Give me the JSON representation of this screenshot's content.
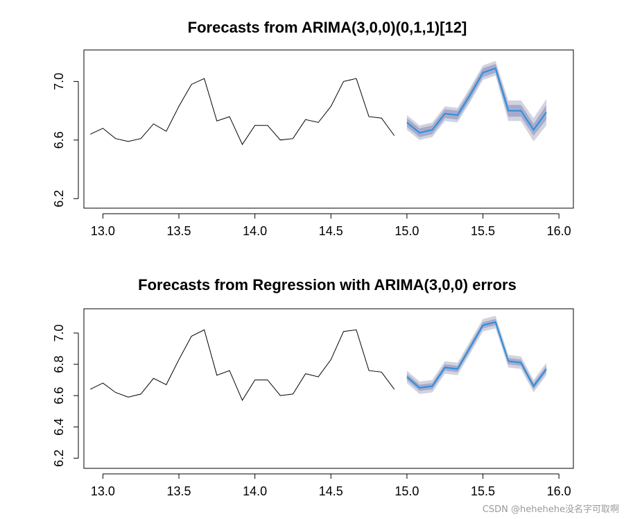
{
  "chart_data": [
    {
      "type": "line",
      "title": "Forecasts from ARIMA(3,0,0)(0,1,1)[12]",
      "xlabel": "",
      "ylabel": "",
      "xlim": [
        12.875,
        16.095
      ],
      "ylim": [
        6.135,
        7.215
      ],
      "x_ticks": [
        13.0,
        13.5,
        14.0,
        14.5,
        15.0,
        15.5,
        16.0
      ],
      "x_tick_labels": [
        "13.0",
        "13.5",
        "14.0",
        "14.5",
        "15.0",
        "15.5",
        "16.0"
      ],
      "y_ticks": [
        6.2,
        6.6,
        7.0
      ],
      "y_tick_labels": [
        "6.2",
        "6.6",
        "7.0"
      ],
      "grid": false,
      "history": {
        "x": [
          12.917,
          13.0,
          13.083,
          13.167,
          13.25,
          13.333,
          13.417,
          13.5,
          13.583,
          13.667,
          13.75,
          13.833,
          13.917,
          14.0,
          14.083,
          14.167,
          14.25,
          14.333,
          14.417,
          14.5,
          14.583,
          14.667,
          14.75,
          14.833,
          14.917
        ],
        "y": [
          6.64,
          6.68,
          6.61,
          6.59,
          6.61,
          6.71,
          6.66,
          6.83,
          6.98,
          7.02,
          6.73,
          6.76,
          6.57,
          6.7,
          6.7,
          6.6,
          6.61,
          6.74,
          6.72,
          6.83,
          7.0,
          7.02,
          6.76,
          6.75,
          6.63
        ]
      },
      "forecast": {
        "x": [
          15.0,
          15.083,
          15.167,
          15.25,
          15.333,
          15.417,
          15.5,
          15.583,
          15.667,
          15.75,
          15.833,
          15.917
        ],
        "mean": [
          6.72,
          6.65,
          6.67,
          6.78,
          6.77,
          6.91,
          7.06,
          7.09,
          6.8,
          6.8,
          6.67,
          6.79
        ],
        "lower80": [
          6.69,
          6.62,
          6.64,
          6.75,
          6.74,
          6.88,
          7.03,
          7.06,
          6.76,
          6.76,
          6.63,
          6.74
        ],
        "upper80": [
          6.75,
          6.68,
          6.7,
          6.81,
          6.8,
          6.94,
          7.09,
          7.12,
          6.84,
          6.84,
          6.71,
          6.84
        ],
        "lower95": [
          6.67,
          6.6,
          6.62,
          6.73,
          6.72,
          6.86,
          7.01,
          7.04,
          6.73,
          6.73,
          6.59,
          6.7
        ],
        "upper95": [
          6.77,
          6.7,
          6.72,
          6.83,
          6.82,
          6.96,
          7.11,
          7.14,
          6.87,
          6.87,
          6.75,
          6.88
        ]
      },
      "colors": {
        "history": "#000000",
        "forecast": "#2a8fdc",
        "band80": "#a6abcd",
        "band95": "#d2d3de"
      }
    },
    {
      "type": "line",
      "title": "Forecasts from Regression with ARIMA(3,0,0) errors",
      "xlabel": "",
      "ylabel": "",
      "xlim": [
        12.875,
        16.095
      ],
      "ylim": [
        6.135,
        7.155
      ],
      "x_ticks": [
        13.0,
        13.5,
        14.0,
        14.5,
        15.0,
        15.5,
        16.0
      ],
      "x_tick_labels": [
        "13.0",
        "13.5",
        "14.0",
        "14.5",
        "15.0",
        "15.5",
        "16.0"
      ],
      "y_ticks": [
        6.2,
        6.4,
        6.6,
        6.8,
        7.0
      ],
      "y_tick_labels": [
        "6.2",
        "6.4",
        "6.6",
        "6.8",
        "7.0"
      ],
      "grid": false,
      "history": {
        "x": [
          12.917,
          13.0,
          13.083,
          13.167,
          13.25,
          13.333,
          13.417,
          13.5,
          13.583,
          13.667,
          13.75,
          13.833,
          13.917,
          14.0,
          14.083,
          14.167,
          14.25,
          14.333,
          14.417,
          14.5,
          14.583,
          14.667,
          14.75,
          14.833,
          14.917
        ],
        "y": [
          6.64,
          6.68,
          6.62,
          6.59,
          6.61,
          6.71,
          6.67,
          6.83,
          6.98,
          7.02,
          6.73,
          6.76,
          6.57,
          6.7,
          6.7,
          6.6,
          6.61,
          6.74,
          6.72,
          6.83,
          7.01,
          7.02,
          6.76,
          6.75,
          6.64
        ]
      },
      "forecast": {
        "x": [
          15.0,
          15.083,
          15.167,
          15.25,
          15.333,
          15.417,
          15.5,
          15.583,
          15.667,
          15.75,
          15.833,
          15.917
        ],
        "mean": [
          6.72,
          6.65,
          6.66,
          6.78,
          6.77,
          6.91,
          7.05,
          7.07,
          6.82,
          6.81,
          6.66,
          6.77
        ],
        "lower80": [
          6.7,
          6.63,
          6.64,
          6.76,
          6.75,
          6.89,
          7.03,
          7.05,
          6.8,
          6.79,
          6.64,
          6.75
        ],
        "upper80": [
          6.74,
          6.67,
          6.68,
          6.8,
          6.79,
          6.93,
          7.07,
          7.09,
          6.84,
          6.83,
          6.68,
          6.79
        ],
        "lower95": [
          6.68,
          6.61,
          6.62,
          6.74,
          6.73,
          6.87,
          7.01,
          7.03,
          6.78,
          6.77,
          6.62,
          6.73
        ],
        "upper95": [
          6.76,
          6.69,
          6.7,
          6.82,
          6.81,
          6.95,
          7.09,
          7.11,
          6.86,
          6.85,
          6.7,
          6.81
        ]
      },
      "colors": {
        "history": "#000000",
        "forecast": "#2a8fdc",
        "band80": "#a6abcd",
        "band95": "#d2d3de"
      }
    }
  ],
  "watermark": "CSDN @hehehehe没名字可取啊"
}
